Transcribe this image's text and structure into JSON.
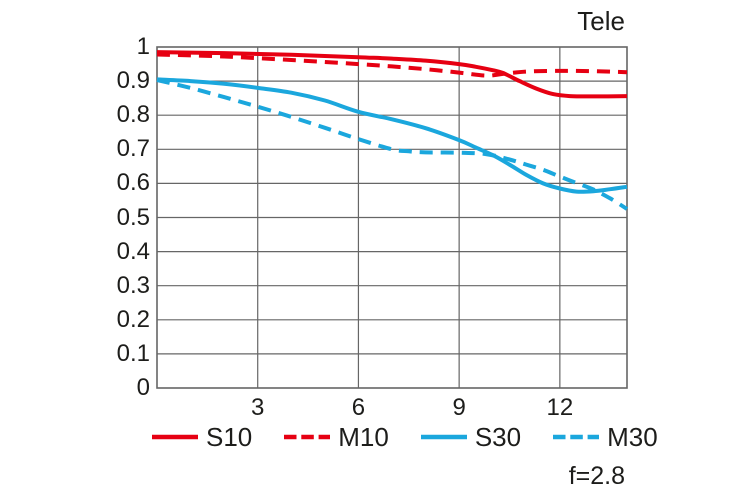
{
  "title": "Tele",
  "aperture_label": "f=2.8",
  "colors": {
    "red": "#e60012",
    "blue": "#1ba7dd",
    "grid": "#666666",
    "text": "#1d1d1b",
    "background": "#ffffff"
  },
  "axes": {
    "y_tick_labels": [
      "1",
      "0.9",
      "0.8",
      "0.7",
      "0.6",
      "0.5",
      "0.4",
      "0.3",
      "0.2",
      "0.1",
      "0"
    ],
    "x_tick_labels": [
      "3",
      "6",
      "9",
      "12"
    ],
    "x_tick_values": [
      3,
      6,
      9,
      12
    ]
  },
  "legend": [
    {
      "id": "s10",
      "label": "S10",
      "color": "#e60012",
      "style": "solid"
    },
    {
      "id": "m10",
      "label": "M10",
      "color": "#e60012",
      "style": "dashed"
    },
    {
      "id": "s30",
      "label": "S30",
      "color": "#1ba7dd",
      "style": "solid"
    },
    {
      "id": "m30",
      "label": "M30",
      "color": "#1ba7dd",
      "style": "dashed"
    }
  ],
  "chart_data": {
    "type": "line",
    "title": "Tele",
    "subtitle": "f=2.8",
    "xlabel": "",
    "ylabel": "",
    "xlim": [
      0,
      14
    ],
    "ylim": [
      0,
      1
    ],
    "x_gridlines": [
      3,
      6,
      9,
      12
    ],
    "y_gridline_step": 0.1,
    "grid": true,
    "legend_position": "bottom",
    "series": [
      {
        "name": "S10",
        "color": "#e60012",
        "style": "solid",
        "points": [
          [
            0,
            0.985
          ],
          [
            2,
            0.982
          ],
          [
            4,
            0.977
          ],
          [
            6,
            0.97
          ],
          [
            7,
            0.966
          ],
          [
            8,
            0.96
          ],
          [
            9,
            0.95
          ],
          [
            9.5,
            0.942
          ],
          [
            10,
            0.932
          ],
          [
            10.3,
            0.924
          ],
          [
            10.8,
            0.9
          ],
          [
            11.3,
            0.878
          ],
          [
            11.8,
            0.862
          ],
          [
            12.3,
            0.856
          ],
          [
            13,
            0.855
          ],
          [
            14,
            0.856
          ]
        ]
      },
      {
        "name": "M10",
        "color": "#e60012",
        "style": "dashed",
        "points": [
          [
            0,
            0.978
          ],
          [
            2,
            0.972
          ],
          [
            4,
            0.962
          ],
          [
            6,
            0.95
          ],
          [
            7,
            0.943
          ],
          [
            8,
            0.935
          ],
          [
            9,
            0.925
          ],
          [
            9.8,
            0.916
          ],
          [
            10.3,
            0.921
          ],
          [
            11,
            0.928
          ],
          [
            12,
            0.93
          ],
          [
            13,
            0.929
          ],
          [
            14,
            0.926
          ]
        ]
      },
      {
        "name": "S30",
        "color": "#1ba7dd",
        "style": "solid",
        "points": [
          [
            0,
            0.905
          ],
          [
            1,
            0.9
          ],
          [
            2,
            0.892
          ],
          [
            3,
            0.88
          ],
          [
            4,
            0.866
          ],
          [
            5,
            0.843
          ],
          [
            6,
            0.81
          ],
          [
            7,
            0.788
          ],
          [
            8,
            0.762
          ],
          [
            9,
            0.727
          ],
          [
            9.5,
            0.705
          ],
          [
            10,
            0.683
          ],
          [
            10.5,
            0.655
          ],
          [
            11,
            0.625
          ],
          [
            11.5,
            0.6
          ],
          [
            12,
            0.585
          ],
          [
            12.5,
            0.576
          ],
          [
            13,
            0.577
          ],
          [
            13.5,
            0.583
          ],
          [
            14,
            0.59
          ]
        ]
      },
      {
        "name": "M30",
        "color": "#1ba7dd",
        "style": "dashed",
        "points": [
          [
            0,
            0.903
          ],
          [
            1,
            0.88
          ],
          [
            2,
            0.853
          ],
          [
            3,
            0.825
          ],
          [
            4,
            0.795
          ],
          [
            5,
            0.763
          ],
          [
            6,
            0.73
          ],
          [
            7,
            0.7
          ],
          [
            7.5,
            0.694
          ],
          [
            8,
            0.691
          ],
          [
            9,
            0.69
          ],
          [
            9.8,
            0.686
          ],
          [
            10.5,
            0.67
          ],
          [
            11,
            0.655
          ],
          [
            11.5,
            0.64
          ],
          [
            12,
            0.62
          ],
          [
            12.5,
            0.601
          ],
          [
            13,
            0.582
          ],
          [
            13.5,
            0.556
          ],
          [
            14,
            0.525
          ]
        ]
      }
    ]
  }
}
